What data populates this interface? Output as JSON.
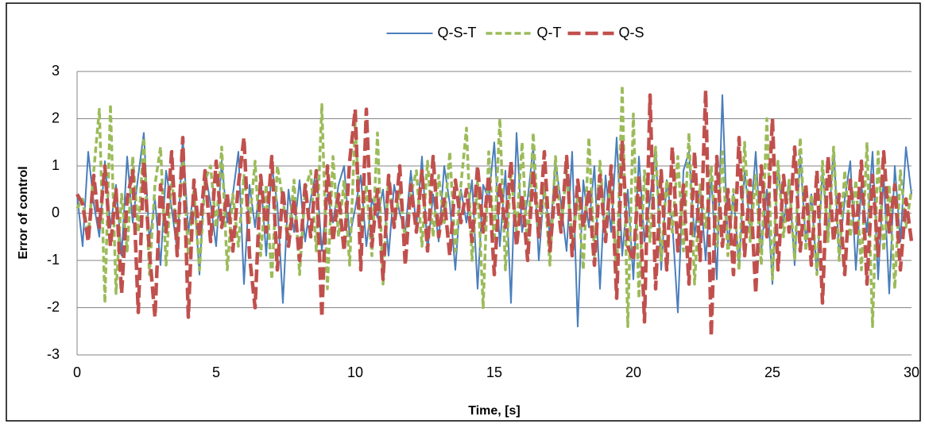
{
  "chart_data": {
    "type": "line",
    "xlabel": "Time, [s]",
    "ylabel": "Error of control",
    "legend": "top",
    "grid": true,
    "xlim": [
      0,
      30
    ],
    "xticks": [
      0,
      5,
      10,
      15,
      20,
      25,
      30
    ],
    "ylim": [
      -3,
      3
    ],
    "yticks": [
      -3,
      -2,
      -1,
      0,
      1,
      2,
      3
    ],
    "x": [
      0,
      0.2,
      0.4,
      0.6,
      0.8,
      1,
      1.2,
      1.4,
      1.6,
      1.8,
      2,
      2.2,
      2.4,
      2.6,
      2.8,
      3,
      3.2,
      3.4,
      3.6,
      3.8,
      4,
      4.2,
      4.4,
      4.6,
      4.8,
      5,
      5.2,
      5.4,
      5.6,
      5.8,
      6,
      6.2,
      6.4,
      6.6,
      6.8,
      7,
      7.2,
      7.4,
      7.6,
      7.8,
      8,
      8.2,
      8.4,
      8.6,
      8.8,
      9,
      9.2,
      9.4,
      9.6,
      9.8,
      10,
      10.2,
      10.4,
      10.6,
      10.8,
      11,
      11.2,
      11.4,
      11.6,
      11.8,
      12,
      12.2,
      12.4,
      12.6,
      12.8,
      13,
      13.2,
      13.4,
      13.6,
      13.8,
      14,
      14.2,
      14.4,
      14.6,
      14.8,
      15,
      15.2,
      15.4,
      15.6,
      15.8,
      16,
      16.2,
      16.4,
      16.6,
      16.8,
      17,
      17.2,
      17.4,
      17.6,
      17.8,
      18,
      18.2,
      18.4,
      18.6,
      18.8,
      19,
      19.2,
      19.4,
      19.6,
      19.8,
      20,
      20.2,
      20.4,
      20.6,
      20.8,
      21,
      21.2,
      21.4,
      21.6,
      21.8,
      22,
      22.2,
      22.4,
      22.6,
      22.8,
      23,
      23.2,
      23.4,
      23.6,
      23.8,
      24,
      24.2,
      24.4,
      24.6,
      24.8,
      25,
      25.2,
      25.4,
      25.6,
      25.8,
      26,
      26.2,
      26.4,
      26.6,
      26.8,
      27,
      27.2,
      27.4,
      27.6,
      27.8,
      28,
      28.2,
      28.4,
      28.6,
      28.8,
      29,
      29.2,
      29.4,
      29.6,
      29.8,
      30
    ],
    "series": [
      {
        "name": "Q-S-T",
        "color": "#4a7ebb",
        "style": "solid",
        "values": [
          0.4,
          -0.7,
          1.3,
          0.2,
          -0.5,
          1.1,
          -0.3,
          0.6,
          -0.9,
          1.2,
          -0.2,
          0.8,
          1.7,
          -0.6,
          0.3,
          -1.1,
          0.9,
          0.1,
          -0.8,
          1.6,
          -0.4,
          0.5,
          -1.3,
          0.9,
          0.2,
          -0.7,
          1.1,
          -0.2,
          0.4,
          1.3,
          -1.5,
          0.6,
          -0.3,
          0.8,
          -0.9,
          1.0,
          0.2,
          -1.9,
          0.5,
          -0.4,
          0.7,
          -0.6,
          0.3,
          0.9,
          -0.8,
          0.4,
          -0.2,
          0.6,
          1.0,
          -0.5,
          0.1,
          0.8,
          -0.7,
          0.3,
          -0.1,
          0.5,
          -0.9,
          0.6,
          0.0,
          -0.4,
          0.9,
          -0.3,
          1.2,
          -0.8,
          0.4,
          -0.6,
          1.0,
          0.2,
          -1.2,
          0.5,
          -0.2,
          0.7,
          -1.6,
          0.6,
          0.3,
          1.5,
          -0.7,
          0.9,
          -1.9,
          1.7,
          -0.4,
          0.3,
          1.4,
          -1.0,
          0.6,
          -0.5,
          1.1,
          0.2,
          -0.8,
          1.3,
          -2.4,
          0.7,
          -0.3,
          1.0,
          -1.6,
          0.8,
          -0.4,
          1.6,
          -0.9,
          0.5,
          -1.4,
          1.2,
          -0.6,
          0.3,
          1.4,
          -1.2,
          0.7,
          -0.2,
          -2.1,
          0.9,
          1.3,
          -0.5,
          0.6,
          -1.0,
          0.8,
          -1.4,
          2.5,
          -0.7,
          0.4,
          -1.1,
          0.9,
          -0.3,
          1.3,
          -0.8,
          0.5,
          -1.5,
          1.0,
          -0.2,
          0.7,
          -1.1,
          1.2,
          -0.6,
          0.4,
          -1.3,
          0.9,
          -0.5,
          1.4,
          -0.9,
          0.3,
          1.1,
          -1.2,
          0.6,
          -0.4,
          1.3,
          -1.4,
          0.8,
          -1.7,
          1.0,
          -0.6,
          1.4,
          0.4
        ]
      },
      {
        "name": "Q-T",
        "color": "#9bbb59",
        "style": "dash",
        "values": [
          0.1,
          0.3,
          -0.5,
          0.9,
          2.2,
          -1.9,
          2.3,
          -1.7,
          0.4,
          -0.8,
          1.2,
          -0.4,
          1.6,
          -1.3,
          0.6,
          1.4,
          -1.1,
          0.8,
          -0.6,
          1.3,
          -0.9,
          0.5,
          -1.2,
          0.7,
          1.0,
          -0.3,
          1.4,
          -1.2,
          0.4,
          -0.7,
          0.8,
          -0.2,
          1.1,
          -0.9,
          0.6,
          -1.4,
          1.0,
          0.3,
          -0.6,
          0.7,
          -1.3,
          0.5,
          0.9,
          -0.8,
          2.3,
          -1.6,
          1.2,
          -0.5,
          0.7,
          -1.1,
          1.9,
          -0.4,
          0.6,
          -0.9,
          1.7,
          -1.5,
          0.8,
          -0.3,
          0.5,
          -0.6,
          0.4,
          0.9,
          -0.7,
          1.1,
          -0.5,
          0.8,
          -0.2,
          1.3,
          -0.8,
          0.6,
          1.8,
          -1.0,
          0.7,
          -2.0,
          1.3,
          -0.6,
          2.0,
          -1.2,
          0.9,
          -0.4,
          1.5,
          -0.8,
          1.7,
          -0.5,
          0.6,
          -1.1,
          1.2,
          -0.3,
          0.9,
          -0.7,
          0.4,
          -1.2,
          1.6,
          -0.9,
          1.1,
          -0.5,
          0.8,
          -1.3,
          2.7,
          -2.4,
          2.1,
          -1.8,
          0.9,
          -0.6,
          1.4,
          -1.0,
          0.7,
          -0.4,
          1.2,
          -0.8,
          1.7,
          -1.5,
          0.6,
          -0.3,
          1.0,
          -0.7,
          1.3,
          -0.9,
          0.5,
          -1.2,
          1.5,
          -0.6,
          0.8,
          -1.1,
          2.0,
          -1.4,
          1.1,
          -0.5,
          0.7,
          -1.0,
          1.6,
          -0.8,
          0.4,
          -1.3,
          1.1,
          -0.6,
          1.4,
          -1.0,
          0.9,
          -0.5,
          0.7,
          -1.2,
          1.5,
          -2.4,
          1.3,
          -0.8,
          0.6,
          -1.6,
          0.9,
          -0.3,
          0.5
        ]
      },
      {
        "name": "Q-S",
        "color": "#c0504d",
        "style": "longdash",
        "values": [
          0.4,
          0.2,
          -0.6,
          0.8,
          -0.3,
          1.0,
          -0.7,
          0.5,
          -1.7,
          0.3,
          0.9,
          -2.1,
          1.1,
          -0.8,
          -2.2,
          0.6,
          -0.4,
          1.3,
          -0.9,
          1.6,
          -2.2,
          0.7,
          -0.5,
          0.9,
          -0.6,
          1.1,
          -0.3,
          0.4,
          -0.8,
          0.6,
          1.6,
          -0.9,
          -2.0,
          0.8,
          -0.4,
          1.2,
          -1.2,
          0.5,
          -0.7,
          0.3,
          -1.0,
          0.6,
          -0.5,
          0.9,
          -2.2,
          1.0,
          -0.6,
          0.4,
          -0.8,
          1.1,
          2.2,
          -1.2,
          2.2,
          -0.7,
          0.5,
          -1.4,
          0.8,
          -0.3,
          1.0,
          -1.1,
          0.6,
          -0.4,
          0.9,
          -0.8,
          1.2,
          -0.5,
          0.3,
          -0.9,
          0.7,
          -0.2,
          0.5,
          -0.6,
          1.0,
          -0.4,
          0.8,
          -1.3,
          0.6,
          -0.3,
          1.1,
          -0.7,
          0.4,
          -1.0,
          0.9,
          -0.5,
          1.3,
          -0.8,
          0.6,
          -0.4,
          1.2,
          -0.9,
          0.7,
          -0.3,
          0.5,
          -1.1,
          0.8,
          -0.6,
          1.0,
          -1.8,
          1.5,
          -0.7,
          -1.0,
          0.8,
          -2.3,
          2.5,
          -1.6,
          0.9,
          -1.2,
          1.4,
          -0.8,
          0.6,
          -1.5,
          1.3,
          -1.0,
          2.6,
          -2.6,
          1.2,
          -0.7,
          0.5,
          -1.3,
          1.6,
          -0.9,
          0.7,
          -1.7,
          1.0,
          -0.5,
          2.0,
          -1.2,
          0.8,
          -0.4,
          1.4,
          -0.8,
          0.6,
          -1.1,
          0.9,
          -1.9,
          1.2,
          -0.6,
          0.4,
          -1.3,
          0.7,
          -0.5,
          1.1,
          -1.5,
          0.8,
          -0.9,
          1.3,
          -0.4,
          0.6,
          -1.2,
          0.3,
          -0.6
        ]
      }
    ]
  }
}
